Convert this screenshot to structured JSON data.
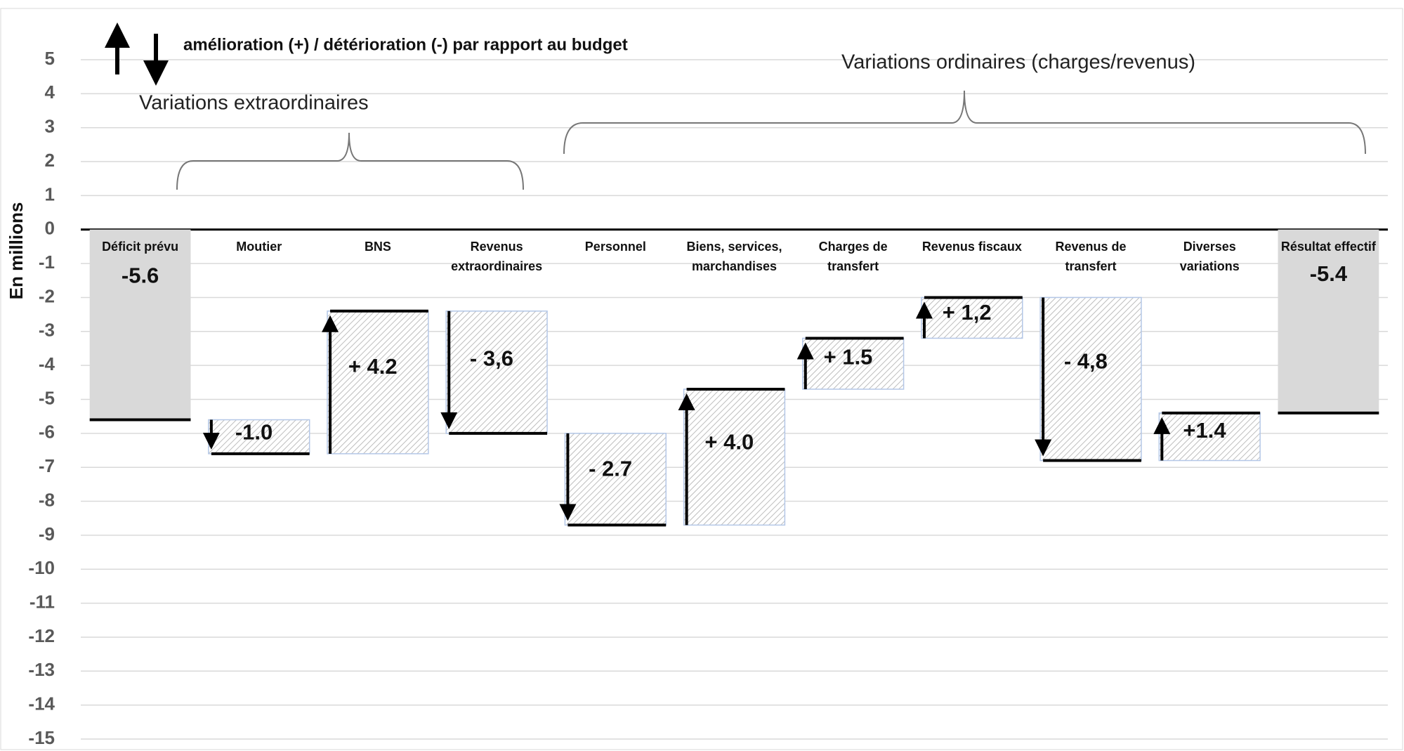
{
  "chart_data": {
    "type": "waterfall",
    "legend_text": "amélioration (+) / détérioration (-) par rapport  au budget",
    "annotations": [
      "Variations extraordinaires",
      "Variations ordinaires (charges/revenus)"
    ],
    "y_label": "En millions",
    "categories": [
      "Déficit prévu",
      "Moutier",
      "BNS",
      "Revenus extraordinaires",
      "Personnel",
      "Biens, services, marchandises",
      "Charges de transfert",
      "Revenus fiscaux",
      "Revenus de transfert",
      "Diverses variations",
      "Résultat effectif"
    ],
    "values": [
      -5.6,
      -1.0,
      4.2,
      -3.6,
      -2.7,
      4.0,
      1.5,
      1.2,
      -4.8,
      1.4,
      -5.4
    ],
    "value_labels": [
      "-5.6",
      "-1.0",
      "+ 4.2",
      "- 3,6",
      "- 2.7",
      "+ 4.0",
      "+ 1.5",
      "+ 1,2",
      "- 4,8",
      "+1.4",
      "-5.4"
    ],
    "is_total": [
      true,
      false,
      false,
      false,
      false,
      false,
      false,
      false,
      false,
      false,
      true
    ],
    "total_color": "#d9d9d9",
    "step_border_color": "#b4c7e7",
    "ylim": [
      -15,
      5
    ],
    "yticks": [
      -15,
      -14,
      -13,
      -12,
      -11,
      -10,
      -9,
      -8,
      -7,
      -6,
      -5,
      -4,
      -3,
      -2,
      -1,
      0,
      1,
      2,
      3,
      4,
      5
    ],
    "grid": true
  }
}
